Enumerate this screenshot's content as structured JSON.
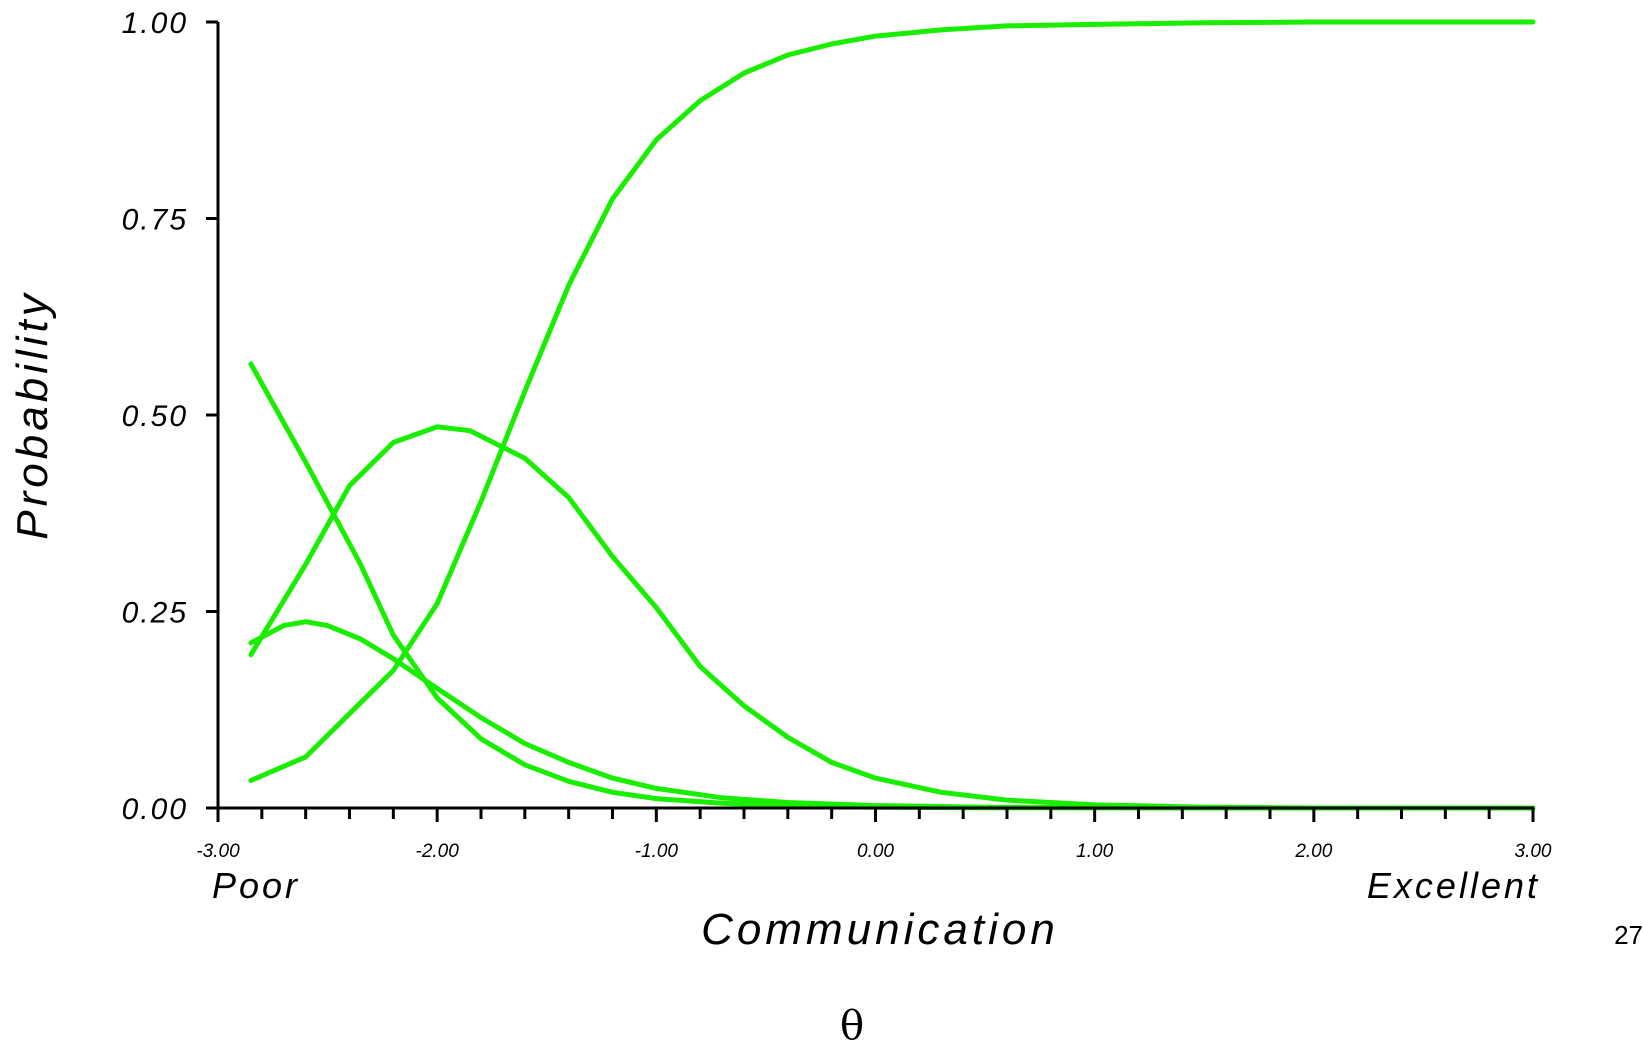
{
  "chart_data": {
    "type": "line",
    "xlabel": "Communication",
    "xlabel_symbol": "θ",
    "ylabel": "Probability",
    "x_end_labels": {
      "left": "Poor",
      "right": "Excellent"
    },
    "xlim": [
      -3.0,
      3.0
    ],
    "ylim": [
      0.0,
      1.0
    ],
    "x_ticks": [
      "-3.00",
      "-2.00",
      "-1.00",
      "0.00",
      "1.00",
      "2.00",
      "3.00"
    ],
    "y_ticks": [
      "0.00",
      "0.25",
      "0.50",
      "0.75",
      "1.00"
    ],
    "grid": false,
    "legend": "none",
    "line_color": "#1aee00",
    "series": [
      {
        "points": [
          [
            -2.85,
            0.565
          ],
          [
            -2.6,
            0.44
          ],
          [
            -2.35,
            0.31
          ],
          [
            -2.2,
            0.22
          ],
          [
            -2.0,
            0.14
          ],
          [
            -1.8,
            0.088
          ],
          [
            -1.6,
            0.055
          ],
          [
            -1.4,
            0.034
          ],
          [
            -1.2,
            0.02
          ],
          [
            -1.0,
            0.012
          ],
          [
            -0.7,
            0.006
          ],
          [
            -0.4,
            0.003
          ],
          [
            0.0,
            0.001
          ],
          [
            0.5,
            0.0004
          ],
          [
            1.0,
            0.0002
          ],
          [
            2.0,
            0.0
          ],
          [
            3.0,
            0.0
          ]
        ]
      },
      {
        "points": [
          [
            -2.85,
            0.21
          ],
          [
            -2.7,
            0.232
          ],
          [
            -2.6,
            0.237
          ],
          [
            -2.5,
            0.232
          ],
          [
            -2.35,
            0.215
          ],
          [
            -2.2,
            0.19
          ],
          [
            -2.0,
            0.152
          ],
          [
            -1.8,
            0.115
          ],
          [
            -1.6,
            0.082
          ],
          [
            -1.4,
            0.058
          ],
          [
            -1.2,
            0.038
          ],
          [
            -1.0,
            0.025
          ],
          [
            -0.7,
            0.013
          ],
          [
            -0.4,
            0.007
          ],
          [
            0.0,
            0.003
          ],
          [
            0.5,
            0.001
          ],
          [
            1.0,
            0.0004
          ],
          [
            2.0,
            0.0
          ],
          [
            3.0,
            0.0
          ]
        ]
      },
      {
        "points": [
          [
            -2.85,
            0.195
          ],
          [
            -2.6,
            0.31
          ],
          [
            -2.4,
            0.41
          ],
          [
            -2.2,
            0.465
          ],
          [
            -2.0,
            0.485
          ],
          [
            -1.85,
            0.48
          ],
          [
            -1.6,
            0.445
          ],
          [
            -1.4,
            0.395
          ],
          [
            -1.2,
            0.32
          ],
          [
            -1.0,
            0.255
          ],
          [
            -0.8,
            0.18
          ],
          [
            -0.6,
            0.13
          ],
          [
            -0.4,
            0.09
          ],
          [
            -0.2,
            0.058
          ],
          [
            0.0,
            0.038
          ],
          [
            0.3,
            0.02
          ],
          [
            0.6,
            0.01
          ],
          [
            1.0,
            0.004
          ],
          [
            1.5,
            0.001
          ],
          [
            2.0,
            0.0
          ],
          [
            3.0,
            0.0
          ]
        ]
      },
      {
        "points": [
          [
            -2.85,
            0.035
          ],
          [
            -2.6,
            0.065
          ],
          [
            -2.4,
            0.12
          ],
          [
            -2.2,
            0.175
          ],
          [
            -2.0,
            0.26
          ],
          [
            -1.8,
            0.39
          ],
          [
            -1.6,
            0.53
          ],
          [
            -1.4,
            0.665
          ],
          [
            -1.2,
            0.775
          ],
          [
            -1.0,
            0.85
          ],
          [
            -0.8,
            0.9
          ],
          [
            -0.6,
            0.935
          ],
          [
            -0.4,
            0.958
          ],
          [
            -0.2,
            0.972
          ],
          [
            0.0,
            0.982
          ],
          [
            0.3,
            0.99
          ],
          [
            0.6,
            0.995
          ],
          [
            1.0,
            0.997
          ],
          [
            1.5,
            0.999
          ],
          [
            2.0,
            1.0
          ],
          [
            3.0,
            1.0
          ]
        ]
      }
    ]
  },
  "page": {
    "slide_number": "27"
  }
}
